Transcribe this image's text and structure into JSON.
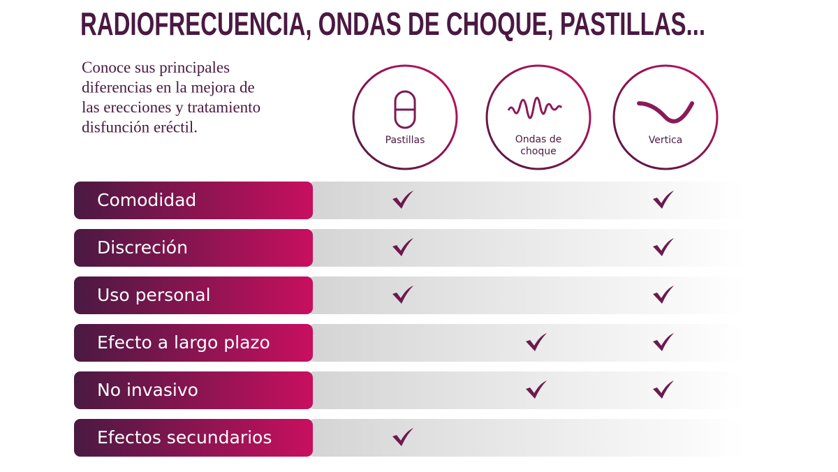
{
  "header": {
    "title": "RADIOFRECUENCIA, ONDAS DE CHOQUE, PASTILLAS...",
    "intro": [
      "Conoce sus principales",
      "diferencias en la mejora de",
      "las erecciones y tratamiento",
      "disfunción eréctil."
    ]
  },
  "table": {
    "columns": [
      "Pastillas",
      "Ondas de choque",
      "Vertica"
    ],
    "rows": [
      {
        "label": "Comodidad",
        "checks": [
          true,
          false,
          true
        ]
      },
      {
        "label": "Discreción",
        "checks": [
          true,
          false,
          true
        ]
      },
      {
        "label": "Uso personal",
        "checks": [
          true,
          false,
          true
        ]
      },
      {
        "label": "Efecto a largo plazo",
        "checks": [
          false,
          true,
          true
        ]
      },
      {
        "label": "No invasivo",
        "checks": [
          false,
          true,
          true
        ]
      },
      {
        "label": "Efectos secundarios",
        "checks": [
          true,
          false,
          false
        ]
      }
    ]
  }
}
